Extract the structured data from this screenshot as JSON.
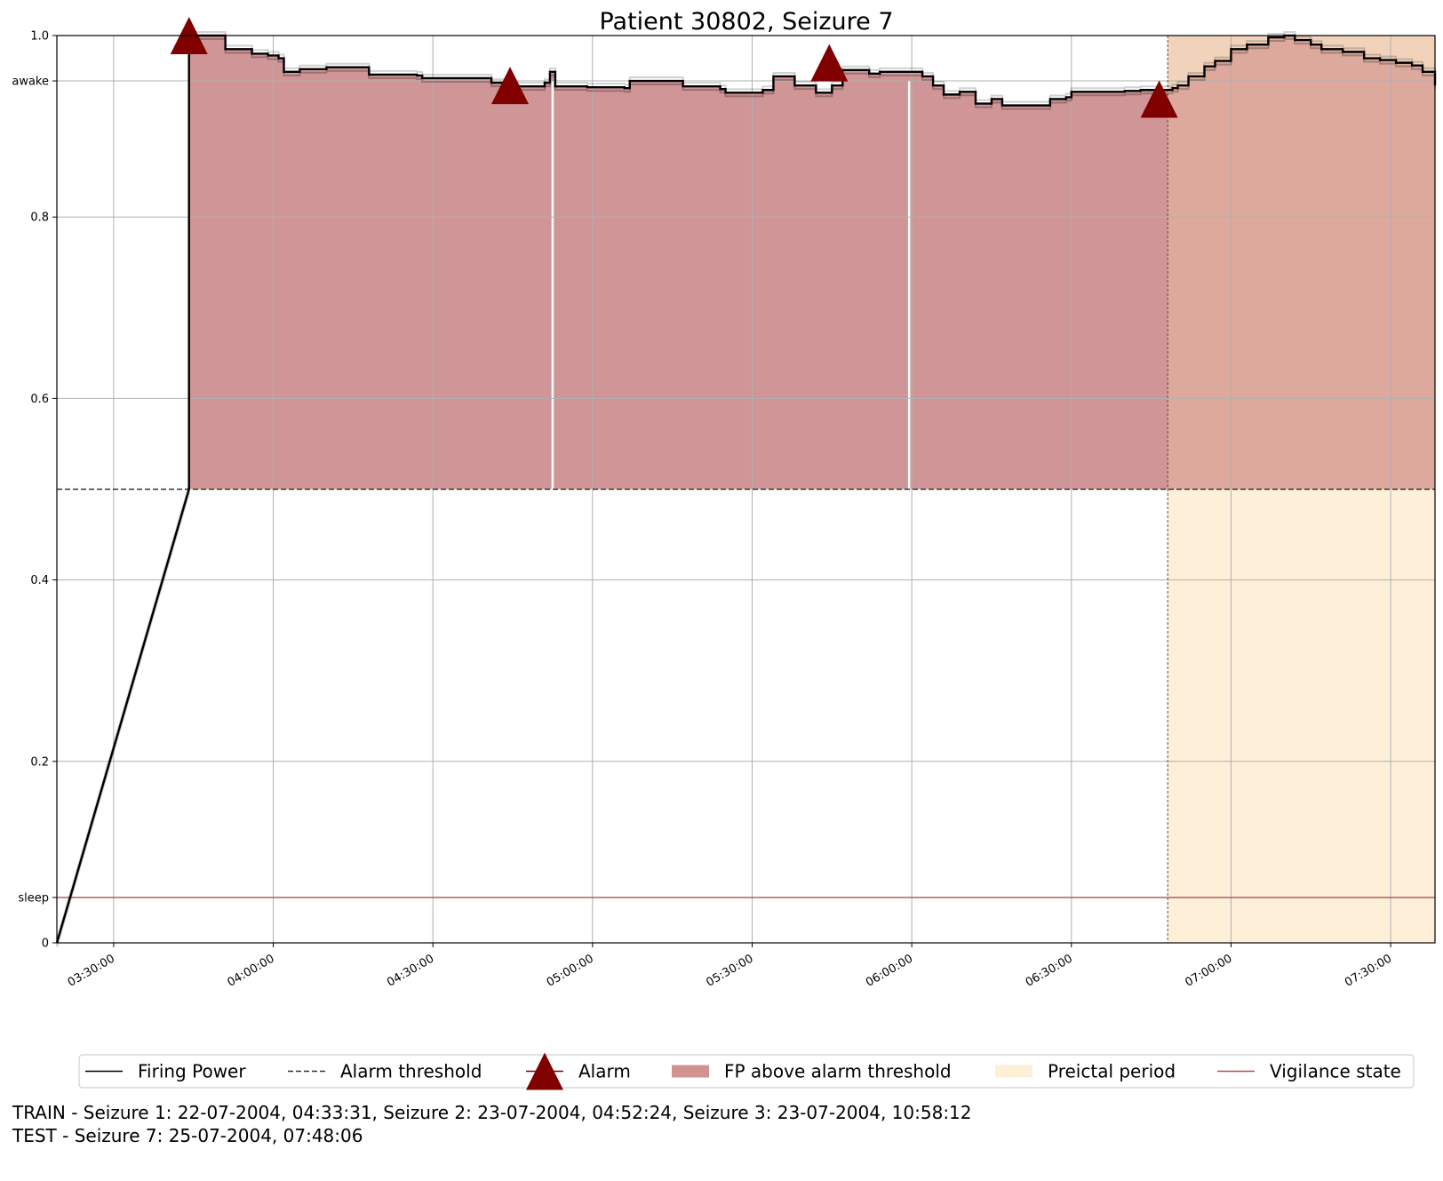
{
  "chart_data": {
    "type": "line",
    "title": "Patient 30802, Seizure 7",
    "xlabel": "",
    "ylabel": "",
    "x_range": [
      "03:19:20",
      "07:38:20"
    ],
    "ylim": [
      0,
      1.0
    ],
    "x_ticks": [
      "03:30:00",
      "04:00:00",
      "04:30:00",
      "05:00:00",
      "05:30:00",
      "06:00:00",
      "06:30:00",
      "07:00:00",
      "07:30:00"
    ],
    "y_ticks": [
      {
        "value": 0,
        "label": "0"
      },
      {
        "value": 0.05,
        "label": "sleep"
      },
      {
        "value": 0.2,
        "label": "0.2"
      },
      {
        "value": 0.4,
        "label": "0.4"
      },
      {
        "value": 0.6,
        "label": "0.6"
      },
      {
        "value": 0.8,
        "label": "0.8"
      },
      {
        "value": 0.95,
        "label": "awake"
      },
      {
        "value": 1.0,
        "label": "1.0"
      }
    ],
    "grid": true,
    "alarm_threshold": 0.5,
    "firing_power": [
      [
        "03:19:20",
        0.0
      ],
      [
        "03:44:10",
        0.5
      ],
      [
        "03:44:10",
        1.0
      ],
      [
        "03:50:00",
        1.0
      ],
      [
        "03:51:00",
        0.985
      ],
      [
        "03:55:00",
        0.985
      ],
      [
        "03:56:00",
        0.98
      ],
      [
        "03:59:00",
        0.978
      ],
      [
        "04:01:00",
        0.975
      ],
      [
        "04:02:00",
        0.96
      ],
      [
        "04:05:00",
        0.963
      ],
      [
        "04:10:00",
        0.965
      ],
      [
        "04:17:00",
        0.965
      ],
      [
        "04:18:00",
        0.957
      ],
      [
        "04:27:00",
        0.956
      ],
      [
        "04:28:00",
        0.953
      ],
      [
        "04:40:00",
        0.953
      ],
      [
        "04:41:00",
        0.948
      ],
      [
        "04:44:00",
        0.945
      ],
      [
        "04:46:00",
        0.944
      ],
      [
        "04:51:00",
        0.948
      ],
      [
        "04:52:00",
        0.96
      ],
      [
        "04:53:00",
        0.944
      ],
      [
        "04:59:00",
        0.943
      ],
      [
        "05:06:00",
        0.942
      ],
      [
        "05:07:00",
        0.95
      ],
      [
        "05:16:00",
        0.95
      ],
      [
        "05:17:00",
        0.944
      ],
      [
        "05:24:00",
        0.941
      ],
      [
        "05:25:00",
        0.937
      ],
      [
        "05:29:00",
        0.937
      ],
      [
        "05:32:00",
        0.94
      ],
      [
        "05:34:00",
        0.955
      ],
      [
        "05:37:00",
        0.955
      ],
      [
        "05:38:00",
        0.945
      ],
      [
        "05:42:00",
        0.937
      ],
      [
        "05:45:00",
        0.945
      ],
      [
        "05:47:00",
        0.962
      ],
      [
        "05:51:00",
        0.962
      ],
      [
        "05:52:00",
        0.958
      ],
      [
        "05:54:00",
        0.96
      ],
      [
        "06:00:00",
        0.96
      ],
      [
        "06:02:00",
        0.955
      ],
      [
        "06:04:00",
        0.945
      ],
      [
        "06:06:00",
        0.935
      ],
      [
        "06:09:00",
        0.938
      ],
      [
        "06:12:00",
        0.925
      ],
      [
        "06:15:00",
        0.93
      ],
      [
        "06:17:00",
        0.923
      ],
      [
        "06:24:00",
        0.923
      ],
      [
        "06:26:00",
        0.93
      ],
      [
        "06:29:00",
        0.932
      ],
      [
        "06:30:00",
        0.938
      ],
      [
        "06:40:00",
        0.939
      ],
      [
        "06:43:00",
        0.94
      ],
      [
        "06:48:00",
        0.94
      ],
      [
        "06:49:00",
        0.942
      ],
      [
        "06:50:00",
        0.945
      ],
      [
        "06:52:00",
        0.955
      ],
      [
        "06:55:00",
        0.966
      ],
      [
        "06:57:00",
        0.972
      ],
      [
        "07:00:00",
        0.985
      ],
      [
        "07:03:00",
        0.99
      ],
      [
        "07:06:00",
        0.99
      ],
      [
        "07:07:00",
        0.998
      ],
      [
        "07:10:00",
        1.0
      ],
      [
        "07:12:00",
        0.995
      ],
      [
        "07:15:00",
        0.99
      ],
      [
        "07:17:00",
        0.985
      ],
      [
        "07:21:00",
        0.982
      ],
      [
        "07:25:00",
        0.975
      ],
      [
        "07:28:00",
        0.973
      ],
      [
        "07:31:00",
        0.97
      ],
      [
        "07:34:00",
        0.967
      ],
      [
        "07:36:00",
        0.96
      ],
      [
        "07:38:20",
        0.945
      ]
    ],
    "fp_above_threshold_gaps": [
      "04:52:30",
      "05:59:30"
    ],
    "alarms": [
      {
        "time": "03:44:10",
        "value": 1.0
      },
      {
        "time": "04:44:30",
        "value": 0.945
      },
      {
        "time": "05:44:30",
        "value": 0.97
      },
      {
        "time": "06:46:30",
        "value": 0.93
      }
    ],
    "preictal_period": [
      "06:48:06",
      "07:38:20"
    ],
    "vigilance_state": [
      [
        "03:19:20",
        0.05
      ],
      [
        "07:38:20",
        0.05
      ]
    ],
    "legend": {
      "placement": "lower-center",
      "entries": [
        {
          "label": "Firing Power",
          "kind": "line"
        },
        {
          "label": "Alarm threshold",
          "kind": "dashed"
        },
        {
          "label": "Alarm",
          "kind": "triangle"
        },
        {
          "label": "FP above alarm threshold",
          "kind": "patch-red"
        },
        {
          "label": "Preictal period",
          "kind": "patch-orange"
        },
        {
          "label": "Vigilance state",
          "kind": "line-red"
        }
      ]
    },
    "colors": {
      "firing_power": "#000000",
      "threshold": "#333333",
      "alarm": "#800000",
      "fp_fill": "#cf9394",
      "preictal_fill": "#feefd9",
      "overlap_fill": "#e6b9a2",
      "vigilance": "#b05050",
      "grid": "#b0b0b0"
    }
  },
  "footer": {
    "train": "TRAIN - Seizure 1: 22-07-2004, 04:33:31, Seizure 2: 23-07-2004, 04:52:24, Seizure 3: 23-07-2004, 10:58:12",
    "test": "TEST - Seizure 7: 25-07-2004, 07:48:06"
  }
}
